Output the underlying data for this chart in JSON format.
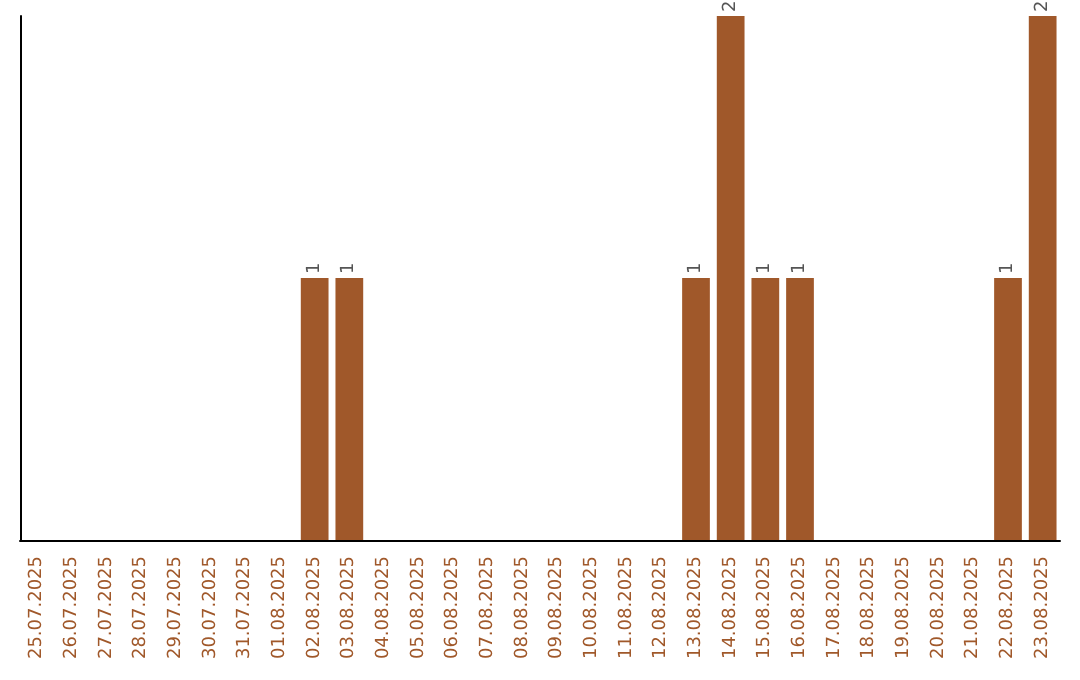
{
  "chart_data": {
    "type": "bar",
    "categories": [
      "25.07.2025",
      "26.07.2025",
      "27.07.2025",
      "28.07.2025",
      "29.07.2025",
      "30.07.2025",
      "31.07.2025",
      "01.08.2025",
      "02.08.2025",
      "03.08.2025",
      "04.08.2025",
      "05.08.2025",
      "06.08.2025",
      "07.08.2025",
      "08.08.2025",
      "09.08.2025",
      "10.08.2025",
      "11.08.2025",
      "12.08.2025",
      "13.08.2025",
      "14.08.2025",
      "15.08.2025",
      "16.08.2025",
      "17.08.2025",
      "18.08.2025",
      "19.08.2025",
      "20.08.2025",
      "21.08.2025",
      "22.08.2025",
      "23.08.2025"
    ],
    "values": [
      0,
      0,
      0,
      0,
      0,
      0,
      0,
      0,
      1,
      1,
      0,
      0,
      0,
      0,
      0,
      0,
      0,
      0,
      0,
      1,
      2,
      1,
      1,
      0,
      0,
      0,
      0,
      0,
      1,
      2
    ],
    "value_labels": [
      null,
      null,
      null,
      null,
      null,
      null,
      null,
      null,
      "1",
      "1",
      null,
      null,
      null,
      null,
      null,
      null,
      null,
      null,
      null,
      "1",
      "2",
      "1",
      "1",
      null,
      null,
      null,
      null,
      null,
      "1",
      "2"
    ],
    "color": "#a0582a"
  }
}
